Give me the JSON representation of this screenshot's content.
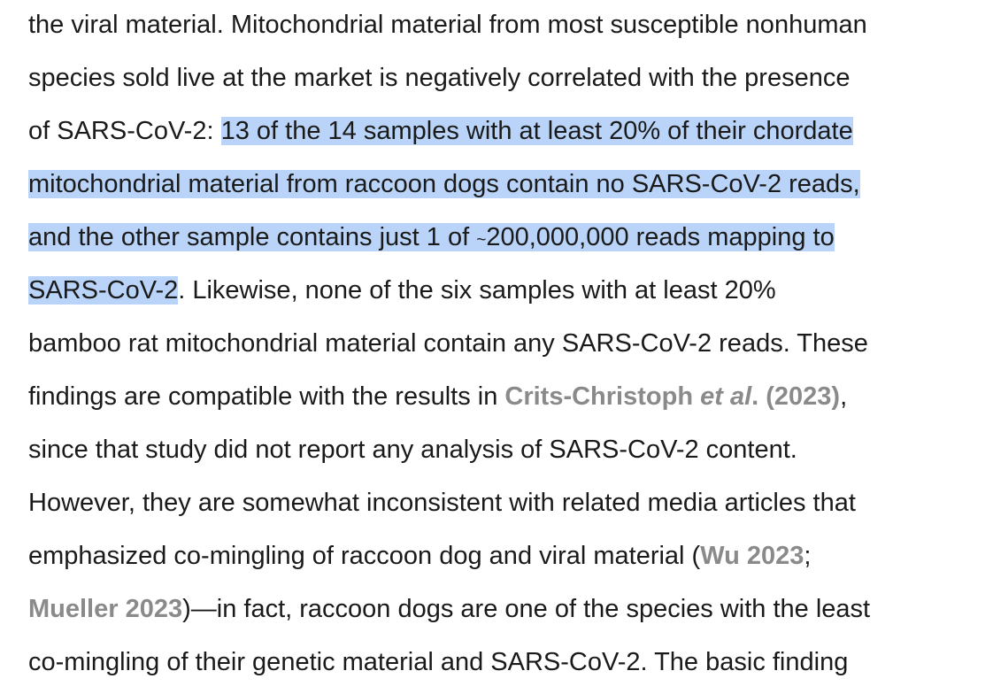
{
  "paragraph": {
    "l1": "the viral material. Mitochondrial material from most susceptible nonhuman",
    "l2": "species sold live at the market is negatively correlated with the presence",
    "l3_pre": "of SARS-CoV-2: ",
    "l3_hl": "13 of the 14 samples with at least 20% of their chordate",
    "l4_hl": "mitochondrial material from raccoon dogs contain no SARS-CoV-2 reads,",
    "l5_hl_a": "and the other sample contains just 1 of ",
    "l5_tilde": "~",
    "l5_hl_b": "200,000,000 reads mapping to",
    "l6_hl": "SARS-CoV-2",
    "l6_post": ". Likewise, none of the six samples with at least 20%",
    "l7": "bamboo rat mitochondrial material contain any SARS-CoV-2 reads. These",
    "l8_pre": "findings are compatible with the results in ",
    "l8_cite_a": "Crits-Christoph ",
    "l8_cite_em": "et al",
    "l8_cite_b": ". (2023)",
    "l8_post": ",",
    "l9": "since that study did not report any analysis of SARS-CoV-2 content.",
    "l10": "However, they are somewhat inconsistent with related media articles that",
    "l11_pre": "emphasized co-mingling of raccoon dog and viral material (",
    "l11_cite": "Wu 2023",
    "l11_post": ";",
    "l12_cite": "Mueller 2023",
    "l12_post": ")—in fact, raccoon dogs are one of the species with the least",
    "l13": "co-mingling of their genetic material and SARS-CoV-2. The basic finding"
  },
  "colors": {
    "text": "#1a1a1a",
    "highlight": "#b9d4f8",
    "citation": "#8a8a8a"
  }
}
